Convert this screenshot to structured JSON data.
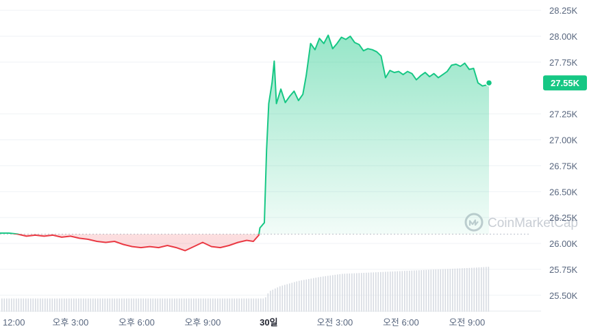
{
  "chart_data": {
    "type": "area",
    "x_domain": [
      0,
      24.5
    ],
    "y_domain": [
      25.34,
      28.35
    ],
    "baseline": 26.09,
    "y_ticks": [
      {
        "v": 28.25,
        "label": "28.25K"
      },
      {
        "v": 28.0,
        "label": "28.00K"
      },
      {
        "v": 27.75,
        "label": "27.75K"
      },
      {
        "v": 27.25,
        "label": "27.25K"
      },
      {
        "v": 27.0,
        "label": "27.00K"
      },
      {
        "v": 26.75,
        "label": "26.75K"
      },
      {
        "v": 26.5,
        "label": "26.50K"
      },
      {
        "v": 26.25,
        "label": "26.25K"
      },
      {
        "v": 26.0,
        "label": "26.00K"
      },
      {
        "v": 25.75,
        "label": "25.75K"
      },
      {
        "v": 25.5,
        "label": "25.50K"
      }
    ],
    "x_ticks": [
      {
        "t": 0.2,
        "label": "오후 12:00",
        "bold": false
      },
      {
        "t": 3.2,
        "label": "오후 3:00",
        "bold": false
      },
      {
        "t": 6.2,
        "label": "오후 6:00",
        "bold": false
      },
      {
        "t": 9.2,
        "label": "오후 9:00",
        "bold": false
      },
      {
        "t": 12.2,
        "label": "30일",
        "bold": true
      },
      {
        "t": 15.2,
        "label": "오전 3:00",
        "bold": false
      },
      {
        "t": 18.2,
        "label": "오전 6:00",
        "bold": false
      },
      {
        "t": 21.2,
        "label": "오전 9:00",
        "bold": false
      }
    ],
    "current_price": {
      "value": 27.55,
      "label": "27.55K"
    },
    "colors": {
      "up": "#16c784",
      "down": "#ea3943",
      "label_bg": "#16c784"
    },
    "series": [
      {
        "values": [
          [
            0.0,
            26.1
          ],
          [
            0.4,
            26.1
          ],
          [
            0.8,
            26.09
          ],
          [
            1.2,
            26.07
          ],
          [
            1.6,
            26.08
          ],
          [
            2.0,
            26.07
          ],
          [
            2.4,
            26.08
          ],
          [
            2.8,
            26.06
          ],
          [
            3.2,
            26.07
          ],
          [
            3.6,
            26.05
          ],
          [
            4.0,
            26.04
          ],
          [
            4.4,
            26.02
          ],
          [
            4.8,
            26.01
          ],
          [
            5.2,
            26.02
          ],
          [
            5.6,
            25.99
          ],
          [
            6.0,
            25.97
          ],
          [
            6.4,
            25.96
          ],
          [
            6.8,
            25.97
          ],
          [
            7.2,
            25.96
          ],
          [
            7.6,
            25.98
          ],
          [
            8.0,
            25.96
          ],
          [
            8.4,
            25.93
          ],
          [
            8.8,
            25.97
          ],
          [
            9.2,
            26.01
          ],
          [
            9.6,
            25.97
          ],
          [
            10.0,
            25.96
          ],
          [
            10.4,
            25.98
          ],
          [
            10.8,
            26.01
          ],
          [
            11.2,
            26.03
          ],
          [
            11.5,
            26.02
          ],
          [
            11.75,
            26.08
          ],
          [
            11.8,
            26.15
          ],
          [
            12.0,
            26.2
          ],
          [
            12.1,
            26.9
          ],
          [
            12.2,
            27.35
          ],
          [
            12.35,
            27.55
          ],
          [
            12.45,
            27.76
          ],
          [
            12.55,
            27.35
          ],
          [
            12.75,
            27.49
          ],
          [
            12.95,
            27.36
          ],
          [
            13.15,
            27.42
          ],
          [
            13.35,
            27.47
          ],
          [
            13.55,
            27.38
          ],
          [
            13.75,
            27.44
          ],
          [
            13.9,
            27.62
          ],
          [
            14.1,
            27.93
          ],
          [
            14.3,
            27.87
          ],
          [
            14.5,
            27.98
          ],
          [
            14.7,
            27.93
          ],
          [
            14.9,
            28.01
          ],
          [
            15.1,
            27.88
          ],
          [
            15.3,
            27.93
          ],
          [
            15.5,
            27.99
          ],
          [
            15.7,
            27.97
          ],
          [
            15.9,
            28.0
          ],
          [
            16.1,
            27.94
          ],
          [
            16.3,
            27.92
          ],
          [
            16.5,
            27.86
          ],
          [
            16.7,
            27.88
          ],
          [
            16.9,
            27.87
          ],
          [
            17.1,
            27.85
          ],
          [
            17.3,
            27.81
          ],
          [
            17.5,
            27.6
          ],
          [
            17.7,
            27.67
          ],
          [
            17.9,
            27.65
          ],
          [
            18.1,
            27.66
          ],
          [
            18.3,
            27.63
          ],
          [
            18.5,
            27.66
          ],
          [
            18.7,
            27.64
          ],
          [
            18.9,
            27.58
          ],
          [
            19.1,
            27.62
          ],
          [
            19.3,
            27.65
          ],
          [
            19.5,
            27.61
          ],
          [
            19.7,
            27.64
          ],
          [
            19.9,
            27.6
          ],
          [
            20.1,
            27.63
          ],
          [
            20.3,
            27.66
          ],
          [
            20.5,
            27.72
          ],
          [
            20.7,
            27.73
          ],
          [
            20.9,
            27.71
          ],
          [
            21.1,
            27.74
          ],
          [
            21.3,
            27.68
          ],
          [
            21.5,
            27.69
          ],
          [
            21.7,
            27.55
          ],
          [
            21.9,
            27.52
          ],
          [
            22.1,
            27.53
          ],
          [
            22.2,
            27.55
          ]
        ]
      }
    ],
    "volume": [
      [
        0.0,
        0.13
      ],
      [
        12.0,
        0.13
      ],
      [
        12.2,
        0.2
      ],
      [
        12.7,
        0.25
      ],
      [
        13.5,
        0.3
      ],
      [
        14.5,
        0.34
      ],
      [
        15.5,
        0.37
      ],
      [
        16.5,
        0.38
      ],
      [
        17.5,
        0.39
      ],
      [
        18.5,
        0.4
      ],
      [
        19.5,
        0.41
      ],
      [
        20.5,
        0.42
      ],
      [
        21.5,
        0.43
      ],
      [
        22.2,
        0.44
      ]
    ]
  },
  "watermark": {
    "text": "CoinMarketCap",
    "logo": "coinmarketcap-logo-icon"
  }
}
